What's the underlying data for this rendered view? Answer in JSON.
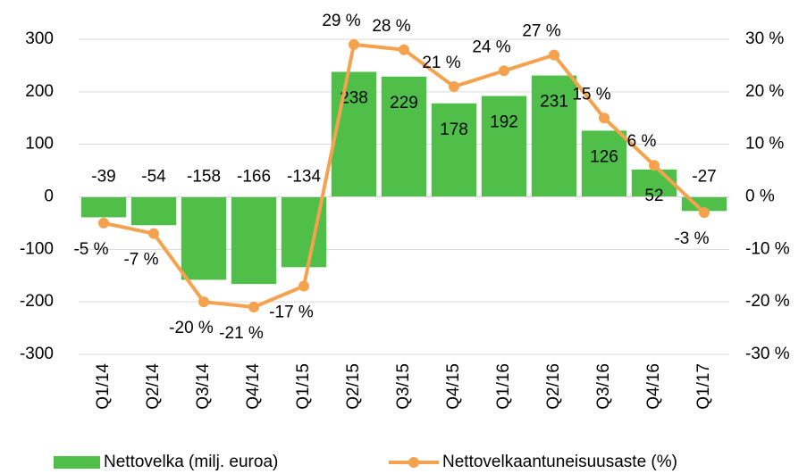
{
  "chart_data": {
    "type": "bar-line",
    "categories": [
      "Q1/14",
      "Q2/14",
      "Q3/14",
      "Q4/14",
      "Q1/15",
      "Q2/15",
      "Q3/15",
      "Q4/15",
      "Q1/16",
      "Q2/16",
      "Q3/16",
      "Q4/16",
      "Q1/17"
    ],
    "series": [
      {
        "name": "Nettovelka (milj. euroa)",
        "type": "bar",
        "color": "#4fbf4a",
        "values": [
          -39,
          -54,
          -158,
          -166,
          -134,
          238,
          229,
          178,
          192,
          231,
          126,
          52,
          -27
        ]
      },
      {
        "name": "Nettovelkaantuneisuusaste (%)",
        "type": "line",
        "axis": "y2",
        "color": "#f5a24e",
        "values": [
          -5,
          -7,
          -20,
          -21,
          -17,
          29,
          28,
          21,
          24,
          27,
          15,
          6,
          -3
        ],
        "value_labels": [
          "-5 %",
          "-7 %",
          "-20 %",
          "-21 %",
          "-17 %",
          "29 %",
          "28 %",
          "21 %",
          "24 %",
          "27 %",
          "15 %",
          "6 %",
          "-3 %"
        ]
      }
    ],
    "ylim": [
      -300,
      300
    ],
    "yticks": [
      -300,
      -200,
      -100,
      0,
      100,
      200,
      300
    ],
    "y2lim": [
      -30,
      30
    ],
    "y2ticks": [
      {
        "value": -30,
        "label": "-30 %"
      },
      {
        "value": -20,
        "label": "-20 %"
      },
      {
        "value": -10,
        "label": "-10 %"
      },
      {
        "value": 0,
        "label": "0 %"
      },
      {
        "value": 10,
        "label": "10 %"
      },
      {
        "value": 20,
        "label": "20 %"
      },
      {
        "value": 30,
        "label": "30 %"
      }
    ],
    "grid": true,
    "legend": "bottom"
  }
}
